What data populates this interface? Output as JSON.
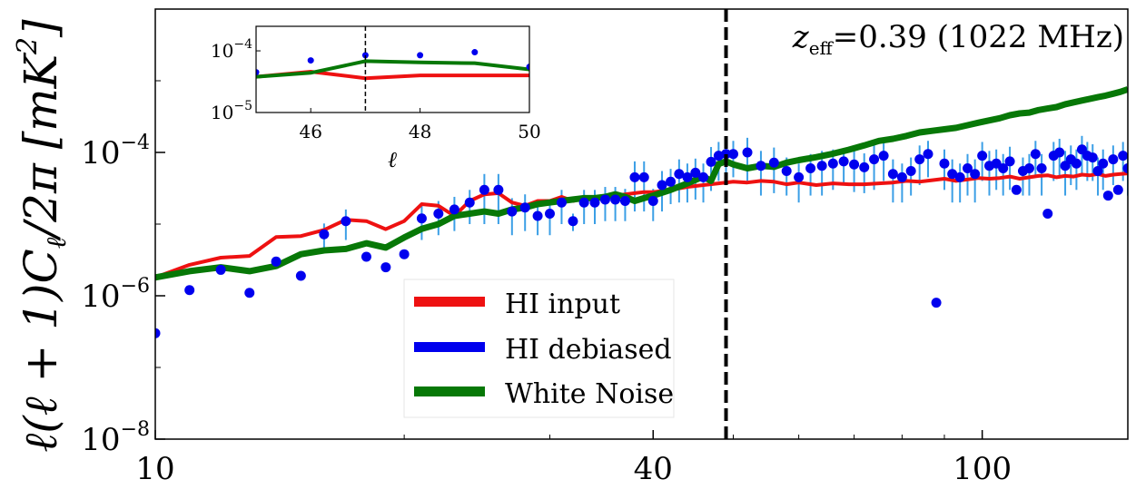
{
  "chart_data": {
    "type": "line",
    "title": "",
    "annotation": "z_eff =0.39 (1022 MHz)",
    "annotation_parts": {
      "symbol": "z",
      "subscript": "eff",
      "rest": "=0.39 (1022 MHz)"
    },
    "ylabel": "ℓ(ℓ + 1)C_ℓ/2π [mK²]",
    "ylabel_parts": {
      "main": "ℓ(ℓ + 1)C",
      "sub": "ℓ",
      "after": "/2π [mK",
      "sup": "2",
      "close": "]"
    },
    "xlabel": "",
    "xscale": "log",
    "yscale": "log",
    "xlim": [
      10,
      150
    ],
    "ylim": [
      1e-08,
      0.01
    ],
    "xticks": [
      {
        "value": 10,
        "label": "10"
      },
      {
        "value": 40,
        "label": "40"
      },
      {
        "value": 100,
        "label": "100"
      }
    ],
    "yticks": [
      {
        "value": 1e-08,
        "base": "10",
        "exp": "−8"
      },
      {
        "value": 1e-06,
        "base": "10",
        "exp": "−6"
      },
      {
        "value": 0.0001,
        "base": "10",
        "exp": "−4"
      }
    ],
    "vline": 49,
    "legend": [
      {
        "label": "HI input",
        "color": "#ee1111"
      },
      {
        "label": "HI debiased",
        "color": "#0000ee"
      },
      {
        "label": "White Noise",
        "color": "#077807"
      }
    ],
    "series": [
      {
        "name": "HI input",
        "color": "#ee1111",
        "x": [
          10,
          11,
          12,
          13,
          14,
          15,
          16,
          17,
          18,
          19,
          20,
          21,
          22,
          23,
          24,
          25,
          26,
          27,
          28,
          29,
          30,
          31,
          32,
          33,
          34,
          35,
          36,
          37,
          38,
          39,
          40,
          42,
          44,
          46,
          48,
          50,
          52,
          54,
          56,
          58,
          60,
          63,
          66,
          69,
          72,
          75,
          78,
          81,
          84,
          87,
          90,
          93,
          96,
          99,
          102,
          105,
          108,
          111,
          114,
          117,
          120,
          123,
          126,
          129,
          132,
          135,
          138,
          141,
          144,
          147,
          150
        ],
        "y": [
          1.8e-06,
          2.7e-06,
          3.4e-06,
          3.6e-06,
          6.6e-06,
          6.8e-06,
          8.3e-06,
          1.15e-05,
          1.1e-05,
          8.5e-06,
          1.1e-05,
          1.9e-05,
          1.8e-05,
          1.3e-05,
          2.1e-05,
          2.6e-05,
          2.7e-05,
          2e-05,
          1.8e-05,
          2.1e-05,
          2.1e-05,
          2.4e-05,
          2.1e-05,
          2.3e-05,
          2.2e-05,
          2.5e-05,
          2.5e-05,
          2.6e-05,
          2.7e-05,
          2.8e-05,
          2.8e-05,
          3e-05,
          3.3e-05,
          3.5e-05,
          3.7e-05,
          3.9e-05,
          3.8e-05,
          4e-05,
          3.9e-05,
          3.6e-05,
          3.8e-05,
          3.5e-05,
          3.7e-05,
          3.6e-05,
          3.6e-05,
          3.7e-05,
          3.8e-05,
          4e-05,
          3.9e-05,
          4.1e-05,
          4.3e-05,
          4e-05,
          4.2e-05,
          4.4e-05,
          4.3e-05,
          4.4e-05,
          4.6e-05,
          4.3e-05,
          4.5e-05,
          4.7e-05,
          4.8e-05,
          4.5e-05,
          4.7e-05,
          4.6e-05,
          4.9e-05,
          4.8e-05,
          5e-05,
          4.7e-05,
          4.9e-05,
          5e-05,
          5.1e-05
        ]
      },
      {
        "name": "White Noise",
        "color": "#077807",
        "x": [
          10,
          11,
          12,
          13,
          14,
          15,
          16,
          17,
          18,
          19,
          20,
          21,
          22,
          23,
          24,
          25,
          26,
          27,
          28,
          29,
          30,
          31,
          32,
          33,
          34,
          35,
          36,
          37,
          38,
          39,
          40,
          42,
          44,
          46,
          47,
          48,
          49,
          50,
          52,
          54,
          56,
          58,
          60,
          63,
          66,
          69,
          72,
          75,
          78,
          81,
          84,
          87,
          90,
          93,
          96,
          99,
          102,
          105,
          108,
          111,
          114,
          117,
          120,
          123,
          126,
          129,
          132,
          135,
          138,
          141,
          144,
          147,
          150
        ],
        "y": [
          1.8e-06,
          2.2e-06,
          2.5e-06,
          2.2e-06,
          2.6e-06,
          3.8e-06,
          4.3e-06,
          4.5e-06,
          5.4e-06,
          4.7e-06,
          6.5e-06,
          8.6e-06,
          1e-05,
          1.3e-05,
          1.4e-05,
          1.5e-05,
          1.4e-05,
          1.6e-05,
          1.7e-05,
          1.9e-05,
          2e-05,
          2.1e-05,
          2.2e-05,
          2.3e-05,
          2.3e-05,
          2.4e-05,
          2.6e-05,
          2.4e-05,
          2.1e-05,
          2.3e-05,
          2.5e-05,
          3e-05,
          3.7e-05,
          4.6e-05,
          4e-05,
          6.9e-05,
          7.5e-05,
          6.8e-05,
          6e-05,
          6.5e-05,
          6.3e-05,
          7.2e-05,
          7.8e-05,
          8.6e-05,
          9.6e-05,
          0.000109,
          0.000125,
          0.000145,
          0.000155,
          0.00017,
          0.00019,
          0.0002,
          0.00021,
          0.00022,
          0.00024,
          0.00026,
          0.00028,
          0.0003,
          0.00033,
          0.00035,
          0.00036,
          0.00039,
          0.00041,
          0.00043,
          0.00047,
          0.0005,
          0.00053,
          0.00056,
          0.00059,
          0.00062,
          0.00066,
          0.0007,
          0.00076
        ]
      }
    ],
    "scatter": {
      "name": "HI debiased",
      "color": "#0000ee",
      "errcolor": "#3b9fe6",
      "points": [
        [
          10,
          3e-07,
          0
        ],
        [
          11,
          1.2e-06,
          1e-08
        ],
        [
          12,
          2.3e-06,
          1e-08
        ],
        [
          13,
          1.1e-06,
          1e-08
        ],
        [
          14,
          3e-06,
          3e-07
        ],
        [
          15,
          1.9e-06,
          1e-08
        ],
        [
          16,
          7.2e-06,
          3e-06
        ],
        [
          17,
          1.1e-05,
          5e-06
        ],
        [
          18,
          3.5e-06,
          1e-08
        ],
        [
          19,
          2.5e-06,
          1e-08
        ],
        [
          20,
          3.8e-06,
          1e-08
        ],
        [
          21,
          1.2e-05,
          6e-06
        ],
        [
          22,
          1.4e-05,
          7e-06
        ],
        [
          23,
          1.6e-05,
          8e-06
        ],
        [
          24,
          2e-05,
          1e-05
        ],
        [
          25,
          3e-05,
          2e-05
        ],
        [
          26,
          3e-05,
          2e-05
        ],
        [
          27,
          1.5e-05,
          8e-06
        ],
        [
          28,
          1.7e-05,
          9e-06
        ],
        [
          29,
          1.3e-05,
          6e-06
        ],
        [
          30,
          1.4e-05,
          7e-06
        ],
        [
          31,
          2e-05,
          1e-05
        ],
        [
          32,
          1.1e-05,
          3e-06
        ],
        [
          33,
          2e-05,
          1e-05
        ],
        [
          34,
          2e-05,
          1e-05
        ],
        [
          35,
          2.2e-05,
          1.1e-05
        ],
        [
          36,
          2.2e-05,
          1.1e-05
        ],
        [
          37,
          2.1e-05,
          1e-05
        ],
        [
          38,
          4.5e-05,
          3e-05
        ],
        [
          39,
          4.5e-05,
          3e-05
        ],
        [
          40,
          2.1e-05,
          1e-05
        ],
        [
          41,
          3.5e-05,
          2e-05
        ],
        [
          42,
          3.9e-05,
          2e-05
        ],
        [
          43,
          5e-05,
          3e-05
        ],
        [
          44,
          4.5e-05,
          2.5e-05
        ],
        [
          45,
          5.2e-05,
          3e-05
        ],
        [
          46,
          4.5e-05,
          2.5e-05
        ],
        [
          47,
          7.4e-05,
          4.5e-05
        ],
        [
          48,
          9e-05,
          5e-05
        ],
        [
          49,
          9.5e-05,
          5e-05
        ],
        [
          50,
          9.5e-05,
          5e-05
        ],
        [
          52,
          0.0001,
          6e-05
        ],
        [
          54,
          6.5e-05,
          4e-05
        ],
        [
          56,
          7.2e-05,
          4.5e-05
        ],
        [
          58,
          5.5e-05,
          3e-05
        ],
        [
          60,
          4.5e-05,
          2.5e-05
        ],
        [
          62,
          6e-05,
          3.5e-05
        ],
        [
          64,
          6.5e-05,
          4e-05
        ],
        [
          66,
          7e-05,
          4e-05
        ],
        [
          68,
          7.5e-05,
          4e-05
        ],
        [
          70,
          6.8e-05,
          4e-05
        ],
        [
          72,
          6.2e-05,
          3.5e-05
        ],
        [
          74,
          8e-05,
          5e-05
        ],
        [
          76,
          9e-05,
          5e-05
        ],
        [
          78,
          5e-05,
          3e-05
        ],
        [
          80,
          4.5e-05,
          2.5e-05
        ],
        [
          82,
          5.5e-05,
          3e-05
        ],
        [
          84,
          8e-05,
          4.5e-05
        ],
        [
          86,
          9.5e-05,
          5e-05
        ],
        [
          88,
          8e-07,
          1e-08
        ],
        [
          90,
          7e-05,
          4e-05
        ],
        [
          92,
          5e-05,
          3e-05
        ],
        [
          94,
          4.5e-05,
          2.5e-05
        ],
        [
          96,
          6e-05,
          3.5e-05
        ],
        [
          98,
          5e-05,
          3e-05
        ],
        [
          100,
          9e-05,
          5e-05
        ],
        [
          102,
          6.5e-05,
          4e-05
        ],
        [
          104,
          7e-05,
          4e-05
        ],
        [
          106,
          6e-05,
          3.5e-05
        ],
        [
          108,
          7.5e-05,
          4.5e-05
        ],
        [
          110,
          3e-05,
          1e-08
        ],
        [
          112,
          5.5e-05,
          3e-05
        ],
        [
          114,
          6e-05,
          3.5e-05
        ],
        [
          116,
          9.5e-05,
          5e-05
        ],
        [
          118,
          6e-05,
          3.5e-05
        ],
        [
          120,
          1.4e-05,
          1e-08
        ],
        [
          122,
          9e-05,
          5e-05
        ],
        [
          124,
          0.0001,
          5.5e-05
        ],
        [
          126,
          6.5e-05,
          4e-05
        ],
        [
          128,
          8e-05,
          4.5e-05
        ],
        [
          130,
          7e-05,
          4e-05
        ],
        [
          132,
          0.00011,
          6e-05
        ],
        [
          134,
          9e-05,
          5e-05
        ],
        [
          136,
          8.5e-05,
          4.5e-05
        ],
        [
          138,
          5.5e-05,
          3e-05
        ],
        [
          140,
          7e-05,
          4e-05
        ],
        [
          142,
          2.5e-05,
          1e-08
        ],
        [
          144,
          8e-05,
          4.5e-05
        ],
        [
          146,
          3e-05,
          1e-08
        ],
        [
          148,
          9e-05,
          5e-05
        ],
        [
          150,
          6e-05,
          3.5e-05
        ]
      ]
    },
    "inset": {
      "xlabel": "ℓ",
      "xlim": [
        45,
        50
      ],
      "ylim": [
        1e-05,
        0.00025
      ],
      "vline": 47,
      "xticks": [
        {
          "value": 46,
          "label": "46"
        },
        {
          "value": 48,
          "label": "48"
        },
        {
          "value": 50,
          "label": "50"
        }
      ],
      "yticks": [
        {
          "value": 0.0001,
          "base": "10",
          "exp": "−4"
        },
        {
          "value": 1e-05,
          "base": "10",
          "exp": "−5"
        }
      ],
      "hi_input": {
        "x": [
          45,
          46,
          47,
          48,
          49,
          50
        ],
        "y": [
          3.8e-05,
          4.6e-05,
          3.6e-05,
          4e-05,
          4e-05,
          4e-05
        ]
      },
      "white_noise": {
        "x": [
          45,
          46,
          47,
          48,
          49,
          50
        ],
        "y": [
          3.8e-05,
          4.4e-05,
          6.8e-05,
          6.5e-05,
          6.3e-05,
          5e-05
        ]
      },
      "hi_debiased": {
        "x": [
          45,
          46,
          47,
          48,
          49,
          50
        ],
        "y": [
          4.5e-05,
          7e-05,
          8.5e-05,
          8.5e-05,
          9.5e-05,
          5.5e-05
        ]
      }
    }
  }
}
